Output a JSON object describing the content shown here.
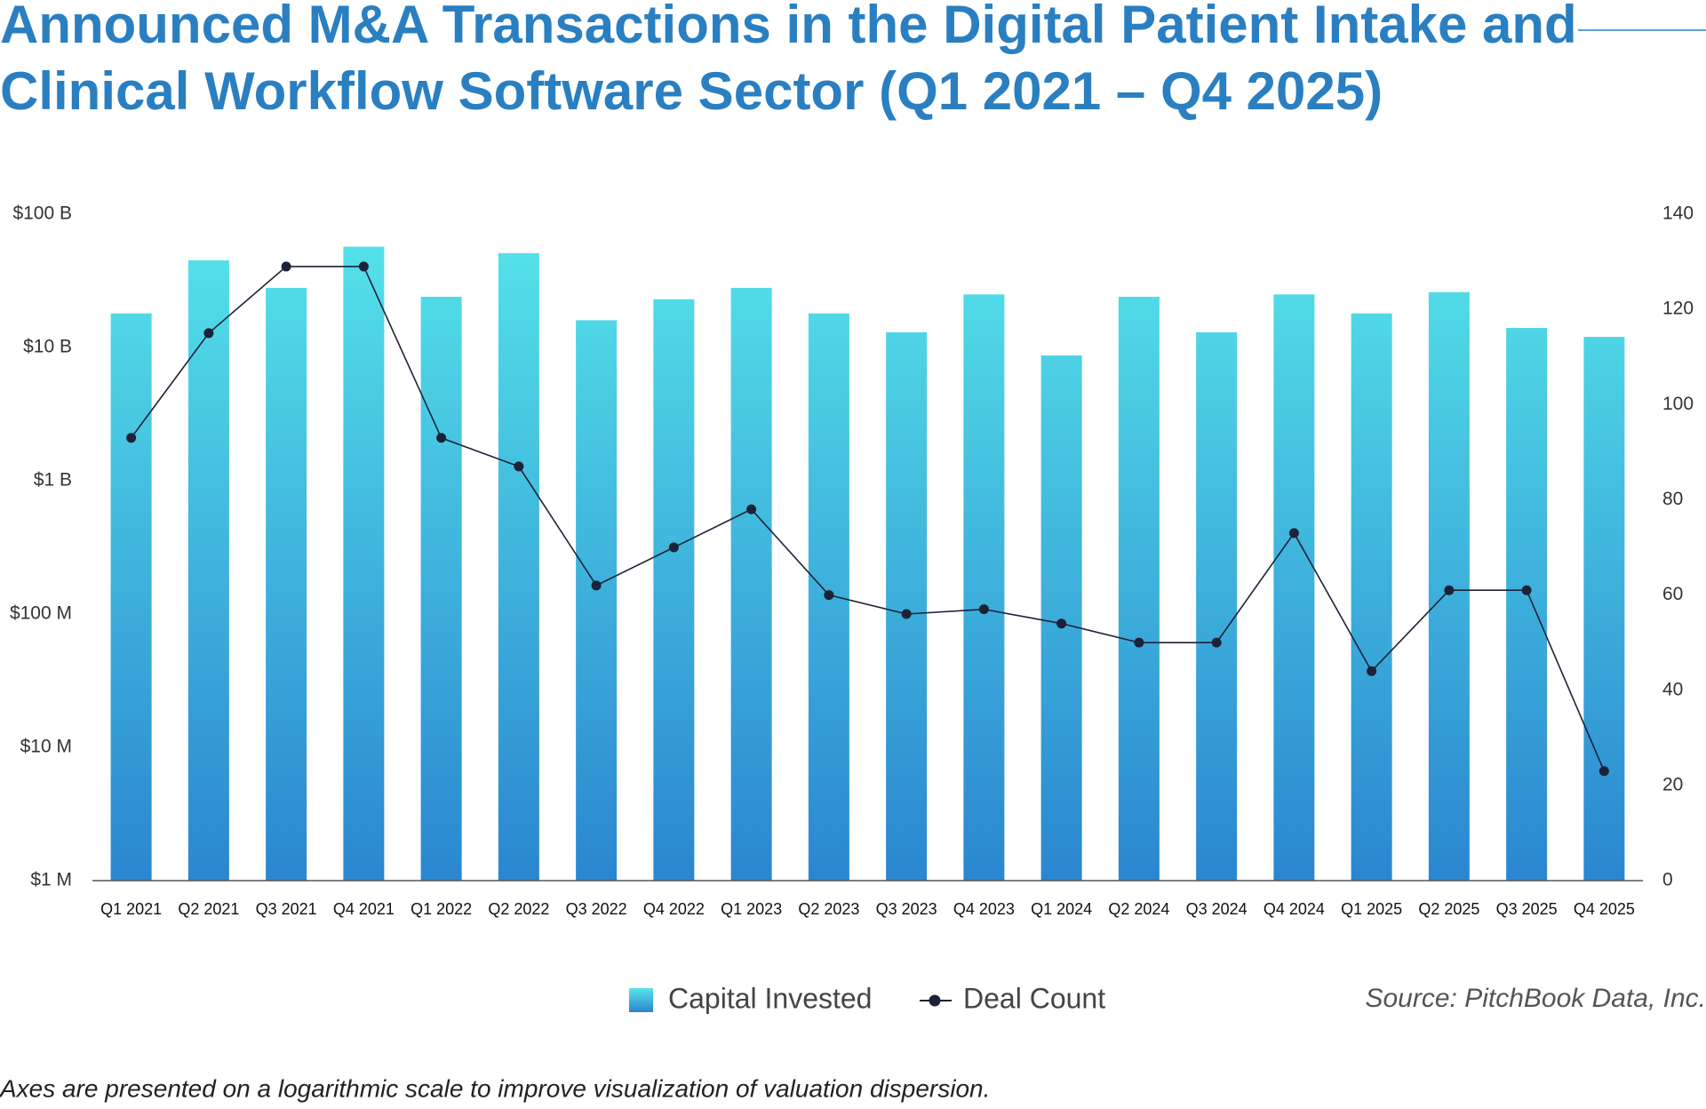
{
  "chart_data": {
    "type": "bar",
    "title": "Announced M&A Transactions in the Digital Patient Intake and Clinical Workflow Software Sector (Q1 2021 – Q4 2025)",
    "title_lines": [
      "Announced M&A Transactions in the Digital Patient Intake and",
      "Clinical Workflow Software Sector (Q1 2021 – Q4 2025)"
    ],
    "categories": [
      "Q1 2021",
      "Q2 2021",
      "Q3 2021",
      "Q4 2021",
      "Q1 2022",
      "Q2 2022",
      "Q3 2022",
      "Q4 2022",
      "Q1 2023",
      "Q2 2023",
      "Q3 2023",
      "Q4 2023",
      "Q1 2024",
      "Q2 2024",
      "Q3 2024",
      "Q4 2024",
      "Q1 2025",
      "Q2 2025",
      "Q3 2025",
      "Q4 2025"
    ],
    "series": [
      {
        "name": "Capital Invested",
        "type": "bar",
        "color": [
          "#56e6ea",
          "#2a86d0"
        ],
        "values": [
          18000000000,
          45000000000,
          28000000000,
          57000000000,
          24000000000,
          51000000000,
          16000000000,
          23000000000,
          28000000000,
          18000000000,
          13000000000,
          25000000000,
          8700000000,
          24000000000,
          13000000000,
          25000000000,
          18000000000,
          26000000000,
          14000000000,
          12000000000
        ]
      },
      {
        "name": "Deal Count",
        "type": "line",
        "axis": "y2",
        "color": "#1c2238",
        "values": [
          93,
          115,
          129,
          129,
          93,
          87,
          62,
          70,
          78,
          60,
          56,
          57,
          54,
          50,
          50,
          73,
          44,
          61,
          61,
          23
        ]
      }
    ],
    "yscale": "log",
    "ylim": [
      1000000,
      100000000000
    ],
    "yticks": [
      {
        "value": 1000000,
        "label": "$1 M"
      },
      {
        "value": 10000000,
        "label": "$10 M"
      },
      {
        "value": 100000000,
        "label": "$100 M"
      },
      {
        "value": 1000000000,
        "label": "$1 B"
      },
      {
        "value": 10000000000,
        "label": "$10 B"
      },
      {
        "value": 100000000000,
        "label": "$100 B"
      }
    ],
    "y2lim": [
      0,
      140
    ],
    "y2ticks": [
      0,
      20,
      40,
      60,
      80,
      100,
      120,
      140
    ],
    "grid": false,
    "source": "Source: PitchBook Data, Inc.",
    "note": "Axes are presented on a logarithmic scale to improve visualization of valuation dispersion."
  }
}
